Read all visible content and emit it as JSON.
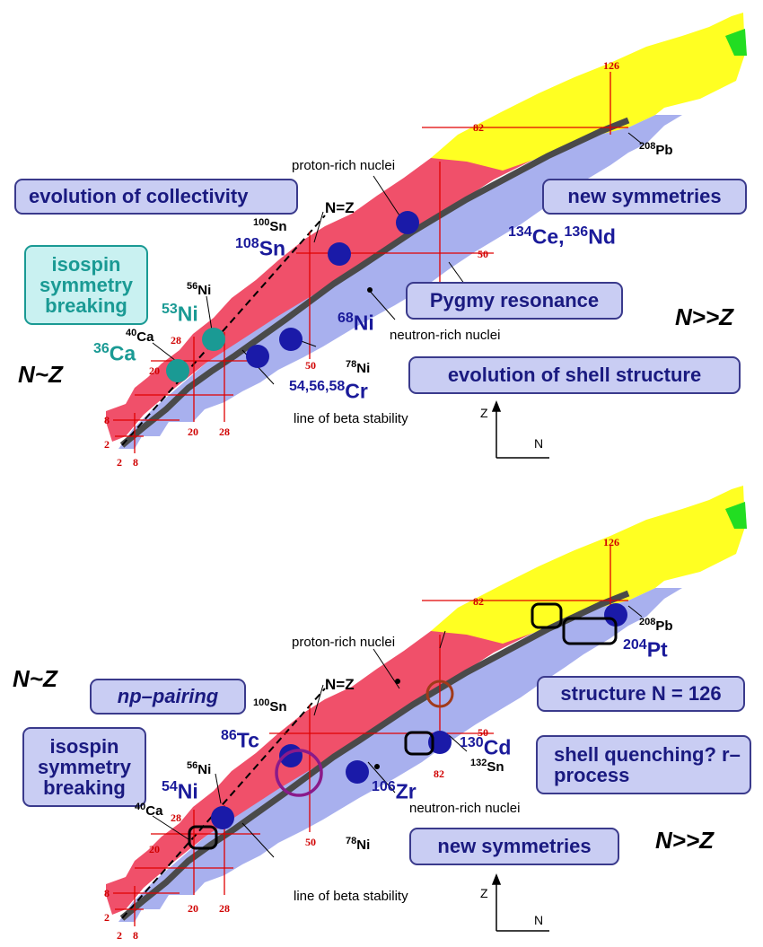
{
  "panels": [
    {
      "boxes": [
        "evolution of collectivity",
        "new symmetries",
        "isospin symmetry breaking",
        "Pygmy resonance",
        "evolution of shell structure"
      ],
      "texts": {
        "proton_rich": "proton-rich nuclei",
        "neutron_rich": "neutron-rich nuclei",
        "beta_line": "line of beta stability",
        "nz_eq": "N=Z",
        "n_approx_z": "N~Z",
        "n_gg_z": "N>>Z"
      },
      "nuclei": {
        "sn100": {
          "mass": "100",
          "el": "Sn"
        },
        "sn108": {
          "mass": "108",
          "el": "Sn"
        },
        "ni56": {
          "mass": "56",
          "el": "Ni"
        },
        "ni53": {
          "mass": "53",
          "el": "Ni"
        },
        "ca40": {
          "mass": "40",
          "el": "Ca"
        },
        "ca36": {
          "mass": "36",
          "el": "Ca"
        },
        "ni68": {
          "mass": "68",
          "el": "Ni"
        },
        "ni78": {
          "mass": "78",
          "el": "Ni"
        },
        "cr": {
          "mass": "54,56,58",
          "el": "Cr"
        },
        "pb208": {
          "mass": "208",
          "el": "Pb"
        },
        "ce134": {
          "mass": "134",
          "el": "Ce,"
        },
        "nd136": {
          "mass": "136",
          "el": "Nd"
        }
      },
      "magic": {
        "z2": "2",
        "z8": "8",
        "z20": "20",
        "z28": "28",
        "z50": "50",
        "z82": "82",
        "n126": "126",
        "n2": "2",
        "n8": "8",
        "n20": "20",
        "n28": "28",
        "n50": "50"
      },
      "axes": {
        "z": "Z",
        "n": "N"
      }
    },
    {
      "boxes": [
        "np–pairing",
        "structure N = 126",
        "isospin symmetry breaking",
        "shell quenching? r–process",
        "new symmetries"
      ],
      "texts": {
        "proton_rich": "proton-rich nuclei",
        "neutron_rich": "neutron-rich nuclei",
        "beta_line": "line of beta stability",
        "nz_eq": "N=Z",
        "n_approx_z": "N~Z",
        "n_gg_z": "N>>Z"
      },
      "nuclei": {
        "sn100": {
          "mass": "100",
          "el": "Sn"
        },
        "tc86": {
          "mass": "86",
          "el": "Tc"
        },
        "ni56": {
          "mass": "56",
          "el": "Ni"
        },
        "ni54": {
          "mass": "54",
          "el": "Ni"
        },
        "ca40": {
          "mass": "40",
          "el": "Ca"
        },
        "zr106": {
          "mass": "106",
          "el": "Zr"
        },
        "ni78": {
          "mass": "78",
          "el": "Ni"
        },
        "cd130": {
          "mass": "130",
          "el": "Cd"
        },
        "sn132": {
          "mass": "132",
          "el": "Sn"
        },
        "pb208": {
          "mass": "208",
          "el": "Pb"
        },
        "pt204": {
          "mass": "204",
          "el": "Pt"
        }
      },
      "magic": {
        "z2": "2",
        "z8": "8",
        "z20": "20",
        "z28": "28",
        "z50": "50",
        "z82": "82",
        "n126": "126",
        "n2": "2",
        "n8": "8",
        "n20": "20",
        "n28": "28",
        "n50": "50",
        "n82": "82"
      },
      "axes": {
        "z": "Z",
        "n": "N"
      }
    }
  ],
  "colors": {
    "stable": "#4a4a4a",
    "proton_rich_region": "#f0506a",
    "neutron_rich_region": "#a8b0ee",
    "heavy_region": "#ffff22",
    "green_region": "#22dd22",
    "magic_line": "#e00000",
    "marker_blue": "#1a1aa8",
    "marker_teal": "#1a9a94",
    "box_fill": "#c9cdf3"
  }
}
